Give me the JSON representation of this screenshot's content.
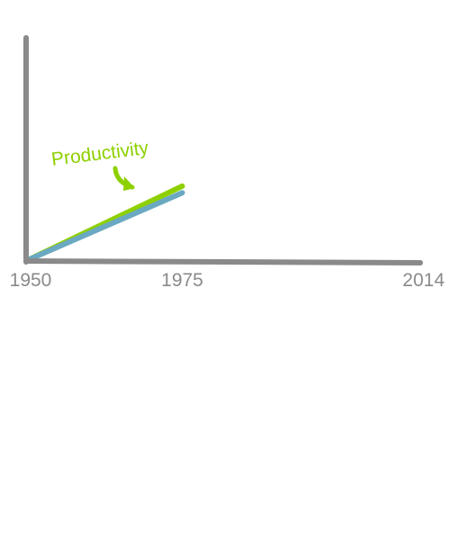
{
  "chart_data": {
    "type": "line",
    "title": "",
    "xlabel": "",
    "ylabel": "",
    "xlim": [
      1950,
      2014
    ],
    "x_ticks": [
      "1950",
      "1975",
      "2014"
    ],
    "grid": false,
    "legend": "none",
    "series": [
      {
        "name": "Productivity",
        "color": "#8ed000",
        "x": [
          1950,
          1975
        ],
        "y": [
          0,
          0.33
        ]
      },
      {
        "color": "#6aa9c1",
        "x": [
          1950,
          1975
        ],
        "y": [
          0,
          0.3
        ]
      }
    ],
    "annotation": {
      "text": "Productivity",
      "color": "#8ed000",
      "icon": "curved-arrow-down-icon"
    }
  },
  "axis_color": "#8a8a8a",
  "tick_label_color": "#8a8a8a"
}
